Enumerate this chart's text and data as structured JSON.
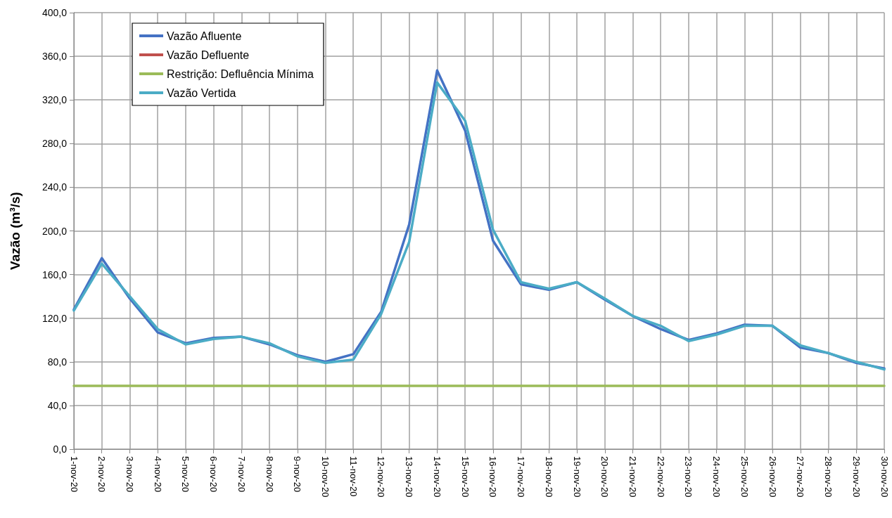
{
  "chart_data": {
    "type": "line",
    "ylabel": "Vazão (m³/s)",
    "categories": [
      "1-nov-20",
      "2-nov-20",
      "3-nov-20",
      "4-nov-20",
      "5-nov-20",
      "6-nov-20",
      "7-nov-20",
      "8-nov-20",
      "9-nov-20",
      "10-nov-20",
      "11-nov-20",
      "12-nov-20",
      "13-nov-20",
      "14-nov-20",
      "15-nov-20",
      "16-nov-20",
      "17-nov-20",
      "18-nov-20",
      "19-nov-20",
      "20-nov-20",
      "21-nov-20",
      "22-nov-20",
      "23-nov-20",
      "24-nov-20",
      "25-nov-20",
      "26-nov-20",
      "27-nov-20",
      "28-nov-20",
      "29-nov-20",
      "30-nov-20"
    ],
    "series": [
      {
        "name": "Vazão Afluente",
        "color": "#4472c4",
        "values": [
          128,
          175,
          138,
          107,
          97,
          102,
          103,
          96,
          86,
          80,
          87,
          126,
          206,
          347,
          292,
          191,
          151,
          146,
          153,
          137,
          122,
          110,
          100,
          106,
          114,
          113,
          93,
          88,
          79,
          74
        ]
      },
      {
        "name": "Vazão Defluente",
        "color": "#c0504d",
        "values": [
          null,
          null,
          null,
          null,
          null,
          null,
          null,
          null,
          null,
          null,
          null,
          null,
          null,
          null,
          null,
          null,
          null,
          null,
          null,
          null,
          null,
          null,
          null,
          null,
          null,
          null,
          null,
          null,
          null,
          null
        ]
      },
      {
        "name": "Restrição: Defluência Mínima",
        "color": "#9bbb59",
        "values": [
          58,
          58,
          58,
          58,
          58,
          58,
          58,
          58,
          58,
          58,
          58,
          58,
          58,
          58,
          58,
          58,
          58,
          58,
          58,
          58,
          58,
          58,
          58,
          58,
          58,
          58,
          58,
          58,
          58,
          58
        ]
      },
      {
        "name": "Vazão Vertida",
        "color": "#4bacc6",
        "values": [
          127,
          170,
          140,
          110,
          96,
          101,
          103,
          97,
          85,
          79,
          82,
          124,
          190,
          336,
          301,
          201,
          153,
          147,
          153,
          138,
          122,
          113,
          99,
          105,
          113,
          113,
          95,
          88,
          80,
          73
        ]
      }
    ],
    "ylim": [
      0,
      400
    ],
    "yticks": [
      {
        "value": 0,
        "label": "0,0"
      },
      {
        "value": 40,
        "label": "40,0"
      },
      {
        "value": 80,
        "label": "80,0"
      },
      {
        "value": 120,
        "label": "120,0"
      },
      {
        "value": 160,
        "label": "160,0"
      },
      {
        "value": 200,
        "label": "200,0"
      },
      {
        "value": 240,
        "label": "240,0"
      },
      {
        "value": 280,
        "label": "280,0"
      },
      {
        "value": 320,
        "label": "320,0"
      },
      {
        "value": 360,
        "label": "360,0"
      },
      {
        "value": 400,
        "label": "400,0"
      }
    ],
    "grid": true,
    "legend": "top left",
    "marker": "none",
    "line_style": "solid"
  }
}
